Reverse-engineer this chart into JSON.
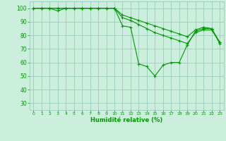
{
  "title": "",
  "xlabel": "Humidité relative (%)",
  "ylabel": "",
  "bg_color": "#cceedd",
  "grid_color": "#99ccbb",
  "line_color": "#009900",
  "xlim": [
    -0.5,
    23.5
  ],
  "ylim": [
    25,
    105
  ],
  "yticks": [
    30,
    40,
    50,
    60,
    70,
    80,
    90,
    100
  ],
  "xticks": [
    0,
    1,
    2,
    3,
    4,
    5,
    6,
    7,
    8,
    9,
    10,
    11,
    12,
    13,
    14,
    15,
    16,
    17,
    18,
    19,
    20,
    21,
    22,
    23
  ],
  "series1": {
    "x": [
      0,
      1,
      2,
      3,
      4,
      5,
      6,
      7,
      8,
      9,
      10,
      11,
      12,
      13,
      14,
      15,
      16,
      17,
      18,
      19,
      20,
      21,
      22,
      23
    ],
    "y": [
      100,
      100,
      100,
      100,
      100,
      100,
      100,
      100,
      100,
      100,
      100,
      87,
      86,
      59,
      57,
      50,
      58,
      60,
      60,
      73,
      83,
      85,
      85,
      74
    ]
  },
  "series2": {
    "x": [
      0,
      1,
      2,
      3,
      4,
      5,
      6,
      7,
      8,
      9,
      10,
      11,
      12,
      13,
      14,
      15,
      16,
      17,
      18,
      19,
      20,
      21,
      22,
      23
    ],
    "y": [
      100,
      100,
      100,
      98,
      100,
      100,
      100,
      100,
      100,
      100,
      100,
      93,
      91,
      88,
      85,
      82,
      80,
      78,
      76,
      74,
      82,
      84,
      84,
      75
    ]
  },
  "series3": {
    "x": [
      0,
      1,
      2,
      3,
      4,
      5,
      6,
      7,
      8,
      9,
      10,
      11,
      12,
      13,
      14,
      15,
      16,
      17,
      18,
      19,
      20,
      21,
      22,
      23
    ],
    "y": [
      100,
      100,
      100,
      100,
      100,
      100,
      100,
      100,
      100,
      100,
      100,
      95,
      93,
      91,
      89,
      87,
      85,
      83,
      81,
      79,
      84,
      86,
      85,
      75
    ]
  }
}
